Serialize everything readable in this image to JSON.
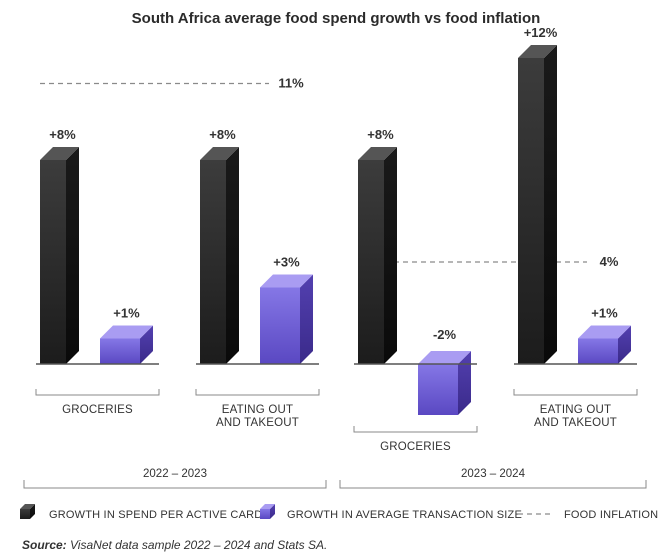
{
  "chart_data": {
    "type": "bar",
    "title": "South Africa average food spend growth vs food inflation",
    "categories": [
      "GROCERIES",
      "EATING OUT AND TAKEOUT",
      "GROCERIES",
      "EATING OUT AND TAKEOUT"
    ],
    "category_lines": [
      [
        "GROCERIES"
      ],
      [
        "EATING OUT",
        "AND TAKEOUT"
      ],
      [
        "GROCERIES"
      ],
      [
        "EATING OUT",
        "AND TAKEOUT"
      ]
    ],
    "periods": [
      {
        "label": "2022 – 2023",
        "categories": [
          0,
          1
        ],
        "food_inflation": 11,
        "food_inflation_label": "11%"
      },
      {
        "label": "2023 – 2024",
        "categories": [
          2,
          3
        ],
        "food_inflation": 4,
        "food_inflation_label": "4%"
      }
    ],
    "series": [
      {
        "name": "GROWTH IN SPEND PER ACTIVE CARD",
        "color": "#2a2a2a",
        "values": [
          8,
          8,
          8,
          12
        ],
        "labels": [
          "+8%",
          "+8%",
          "+8%",
          "+12%"
        ]
      },
      {
        "name": "GROWTH IN AVERAGE TRANSACTION SIZE",
        "color": "#6a5acd",
        "values": [
          1,
          3,
          -2,
          1
        ],
        "labels": [
          "+1%",
          "+3%",
          "-2%",
          "+1%"
        ]
      }
    ],
    "inflation_series_name": "FOOD INFLATION",
    "legend_position": "bottom"
  },
  "source": {
    "prefix": "Source:",
    "text": " VisaNet data sample 2022 – 2024 and Stats SA."
  }
}
